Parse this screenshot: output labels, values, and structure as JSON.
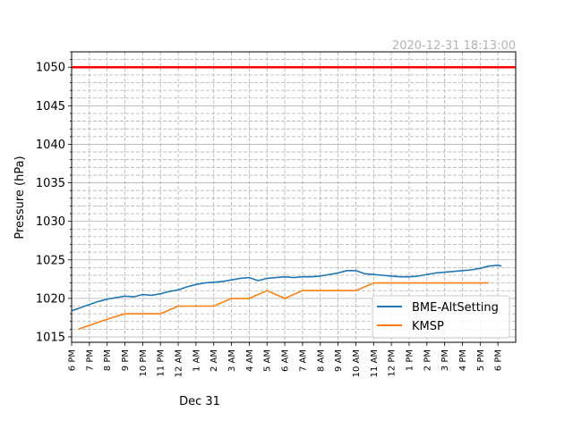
{
  "chart_data": {
    "type": "line",
    "timestamp": "2020-12-31 18:13:00",
    "ylabel": "Pressure (hPa)",
    "date_label": "Dec 31",
    "ylim": [
      1014.3,
      1052.0
    ],
    "yticks": [
      1015,
      1020,
      1025,
      1030,
      1035,
      1040,
      1045,
      1050
    ],
    "ytick_labels": [
      "1015",
      "1020",
      "1025",
      "1030",
      "1035",
      "1040",
      "1045",
      "1050"
    ],
    "xlim_hours": [
      0,
      25
    ],
    "xticks": [
      "6 PM",
      "7 PM",
      "8 PM",
      "9 PM",
      "10 PM",
      "11 PM",
      "12 AM",
      "1 AM",
      "2 AM",
      "3 AM",
      "4 AM",
      "5 AM",
      "6 AM",
      "7 AM",
      "8 AM",
      "9 AM",
      "10 AM",
      "11 AM",
      "12 PM",
      "1 PM",
      "2 PM",
      "3 PM",
      "4 PM",
      "5 PM",
      "6 PM"
    ],
    "grid": "major solid, minor dashed",
    "legend_position": "lower-right",
    "reference_line": {
      "value": 1050,
      "color": "#ff0000"
    },
    "series": [
      {
        "name": "BME-AltSetting",
        "color": "#1f77b4",
        "x": [
          0.0,
          0.5,
          1.0,
          1.5,
          2.0,
          2.5,
          3.0,
          3.5,
          4.0,
          4.5,
          5.0,
          5.5,
          6.0,
          6.5,
          7.0,
          7.5,
          8.0,
          8.5,
          9.0,
          9.5,
          10.0,
          10.5,
          11.0,
          11.5,
          12.0,
          12.5,
          13.0,
          13.5,
          14.0,
          14.5,
          15.0,
          15.5,
          16.0,
          16.5,
          17.0,
          17.5,
          18.0,
          18.5,
          19.0,
          19.5,
          20.0,
          20.5,
          21.0,
          21.5,
          22.0,
          22.5,
          23.0,
          23.5,
          24.0,
          24.2
        ],
        "y": [
          1018.4,
          1018.8,
          1019.2,
          1019.6,
          1019.9,
          1020.1,
          1020.3,
          1020.2,
          1020.5,
          1020.4,
          1020.6,
          1020.9,
          1021.1,
          1021.5,
          1021.8,
          1022.0,
          1022.1,
          1022.2,
          1022.4,
          1022.6,
          1022.7,
          1022.3,
          1022.6,
          1022.7,
          1022.8,
          1022.7,
          1022.8,
          1022.8,
          1022.9,
          1023.1,
          1023.3,
          1023.6,
          1023.6,
          1023.2,
          1023.1,
          1023.0,
          1022.9,
          1022.8,
          1022.8,
          1022.9,
          1023.1,
          1023.3,
          1023.4,
          1023.5,
          1023.6,
          1023.7,
          1023.9,
          1024.2,
          1024.3,
          1024.2
        ]
      },
      {
        "name": "KMSP",
        "color": "#ff7f0e",
        "x": [
          0.4,
          1.0,
          2.0,
          3.0,
          4.0,
          5.0,
          6.0,
          7.0,
          8.0,
          9.0,
          10.0,
          11.0,
          12.0,
          13.0,
          14.0,
          15.0,
          16.0,
          17.0,
          18.0,
          19.0,
          20.0,
          21.0,
          22.0,
          23.0,
          23.5
        ],
        "y": [
          1016,
          1016.5,
          1017.3,
          1018,
          1018,
          1018,
          1019,
          1019,
          1019,
          1020,
          1020,
          1021,
          1020,
          1021,
          1021,
          1021,
          1021,
          1022,
          1022,
          1022,
          1022,
          1022,
          1022,
          1022,
          1022
        ]
      }
    ]
  }
}
